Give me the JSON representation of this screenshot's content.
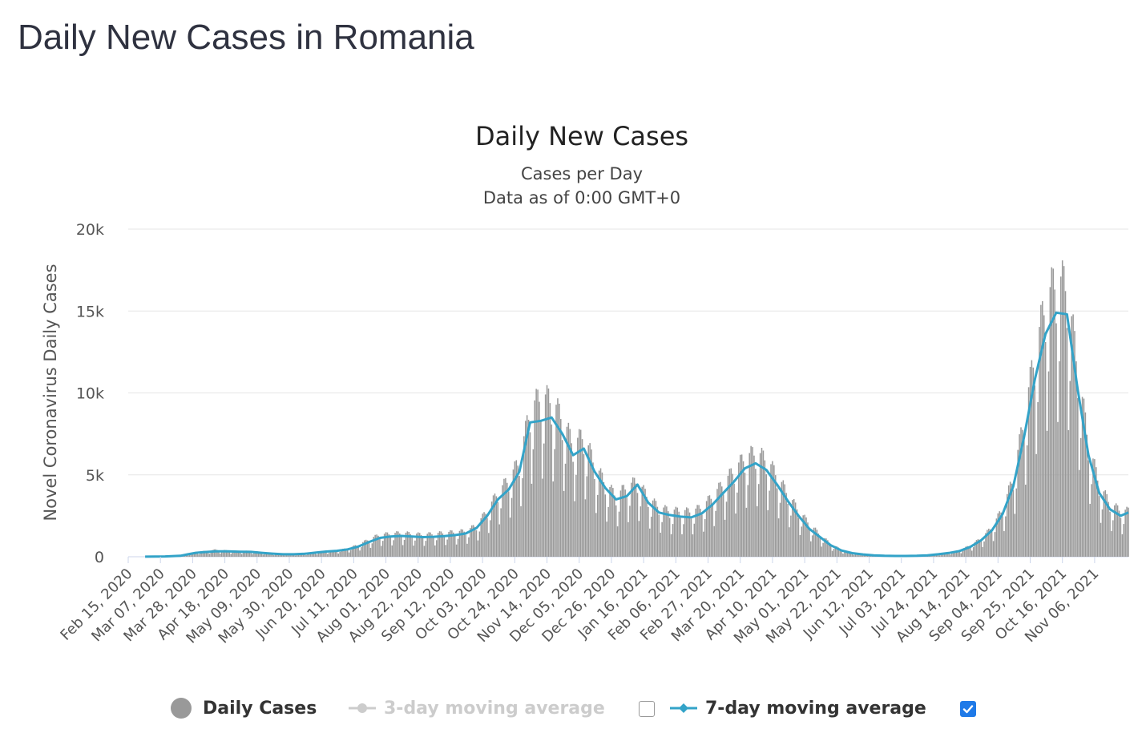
{
  "page": {
    "title": "Daily New Cases in Romania"
  },
  "chart_data": {
    "type": "bar",
    "title": "Daily New Cases",
    "subtitle_lines": [
      "Cases per Day",
      "Data as of 0:00 GMT+0"
    ],
    "xlabel": "",
    "ylabel": "Novel Coronavirus Daily Cases",
    "ylim": [
      0,
      20000
    ],
    "y_ticks": [
      0,
      5000,
      10000,
      15000,
      20000
    ],
    "y_tick_labels": [
      "0",
      "5k",
      "10k",
      "15k",
      "20k"
    ],
    "x_start_date": "2020-02-15",
    "x_end_date": "2021-11-28",
    "x_tick_labels": [
      "Feb 15, 2020",
      "Mar 07, 2020",
      "Mar 28, 2020",
      "Apr 18, 2020",
      "May 09, 2020",
      "May 30, 2020",
      "Jun 20, 2020",
      "Jul 11, 2020",
      "Aug 01, 2020",
      "Aug 22, 2020",
      "Sep 12, 2020",
      "Oct 03, 2020",
      "Oct 24, 2020",
      "Nov 14, 2020",
      "Dec 05, 2020",
      "Dec 26, 2020",
      "Jan 16, 2021",
      "Feb 06, 2021",
      "Feb 27, 2021",
      "Mar 20, 2021",
      "Apr 10, 2021",
      "May 01, 2021",
      "May 22, 2021",
      "Jun 12, 2021",
      "Jul 03, 2021",
      "Jul 24, 2021",
      "Aug 14, 2021",
      "Sep 04, 2021",
      "Sep 25, 2021",
      "Oct 16, 2021",
      "Nov 06, 2021"
    ],
    "grid": true,
    "legend_position": "bottom",
    "series": [
      {
        "name": "Daily Cases",
        "type": "bar",
        "color": "#999999",
        "visible": true,
        "points": [
          [
            "2020-02-26",
            1
          ],
          [
            "2020-03-10",
            15
          ],
          [
            "2020-03-20",
            50
          ],
          [
            "2020-03-25",
            150
          ],
          [
            "2020-03-30",
            250
          ],
          [
            "2020-04-05",
            300
          ],
          [
            "2020-04-12",
            380
          ],
          [
            "2020-04-20",
            330
          ],
          [
            "2020-04-28",
            300
          ],
          [
            "2020-05-05",
            310
          ],
          [
            "2020-05-12",
            250
          ],
          [
            "2020-05-19",
            180
          ],
          [
            "2020-05-26",
            150
          ],
          [
            "2020-06-02",
            130
          ],
          [
            "2020-06-09",
            170
          ],
          [
            "2020-06-16",
            250
          ],
          [
            "2020-06-23",
            320
          ],
          [
            "2020-06-30",
            340
          ],
          [
            "2020-07-07",
            450
          ],
          [
            "2020-07-14",
            650
          ],
          [
            "2020-07-21",
            950
          ],
          [
            "2020-07-28",
            1200
          ],
          [
            "2020-08-04",
            1250
          ],
          [
            "2020-08-11",
            1300
          ],
          [
            "2020-08-18",
            1250
          ],
          [
            "2020-08-25",
            1200
          ],
          [
            "2020-09-01",
            1250
          ],
          [
            "2020-09-08",
            1300
          ],
          [
            "2020-09-15",
            1350
          ],
          [
            "2020-09-22",
            1400
          ],
          [
            "2020-09-29",
            1700
          ],
          [
            "2020-10-06",
            2500
          ],
          [
            "2020-10-13",
            3500
          ],
          [
            "2020-10-20",
            4200
          ],
          [
            "2020-10-27",
            5200
          ],
          [
            "2020-11-03",
            8000
          ],
          [
            "2020-11-10",
            8700
          ],
          [
            "2020-11-17",
            8500
          ],
          [
            "2020-11-24",
            7500
          ],
          [
            "2020-12-01",
            6100
          ],
          [
            "2020-12-08",
            6600
          ],
          [
            "2020-12-15",
            5000
          ],
          [
            "2020-12-22",
            4000
          ],
          [
            "2020-12-29",
            3300
          ],
          [
            "2021-01-05",
            3800
          ],
          [
            "2021-01-12",
            4100
          ],
          [
            "2021-01-19",
            3200
          ],
          [
            "2021-01-26",
            2700
          ],
          [
            "2021-02-02",
            2500
          ],
          [
            "2021-02-09",
            2500
          ],
          [
            "2021-02-16",
            2450
          ],
          [
            "2021-02-23",
            2700
          ],
          [
            "2021-03-02",
            3300
          ],
          [
            "2021-03-09",
            4000
          ],
          [
            "2021-03-16",
            4700
          ],
          [
            "2021-03-23",
            5400
          ],
          [
            "2021-03-30",
            5650
          ],
          [
            "2021-04-06",
            5300
          ],
          [
            "2021-04-13",
            4400
          ],
          [
            "2021-04-20",
            3400
          ],
          [
            "2021-04-27",
            2500
          ],
          [
            "2021-05-04",
            1800
          ],
          [
            "2021-05-11",
            1200
          ],
          [
            "2021-05-18",
            700
          ],
          [
            "2021-05-25",
            380
          ],
          [
            "2021-06-01",
            220
          ],
          [
            "2021-06-08",
            140
          ],
          [
            "2021-06-15",
            90
          ],
          [
            "2021-06-22",
            60
          ],
          [
            "2021-06-29",
            50
          ],
          [
            "2021-07-06",
            50
          ],
          [
            "2021-07-13",
            60
          ],
          [
            "2021-07-20",
            90
          ],
          [
            "2021-07-27",
            150
          ],
          [
            "2021-08-03",
            230
          ],
          [
            "2021-08-10",
            350
          ],
          [
            "2021-08-17",
            620
          ],
          [
            "2021-08-24",
            1000
          ],
          [
            "2021-08-31",
            1600
          ],
          [
            "2021-09-07",
            2600
          ],
          [
            "2021-09-14",
            4300
          ],
          [
            "2021-09-21",
            7500
          ],
          [
            "2021-09-28",
            11000
          ],
          [
            "2021-10-05",
            13800
          ],
          [
            "2021-10-12",
            15000
          ],
          [
            "2021-10-19",
            14700
          ],
          [
            "2021-10-26",
            10200
          ],
          [
            "2021-11-02",
            6200
          ],
          [
            "2021-11-09",
            3900
          ],
          [
            "2021-11-16",
            2900
          ],
          [
            "2021-11-23",
            2500
          ]
        ]
      },
      {
        "name": "3-day moving average",
        "type": "line",
        "color": "#cccccc",
        "visible": false,
        "checked": false
      },
      {
        "name": "7-day moving average",
        "type": "line",
        "color": "#33a3c8",
        "visible": true,
        "checked": true,
        "points": [
          [
            "2020-02-26",
            5
          ],
          [
            "2020-03-10",
            20
          ],
          [
            "2020-03-20",
            60
          ],
          [
            "2020-03-25",
            150
          ],
          [
            "2020-03-30",
            240
          ],
          [
            "2020-04-05",
            290
          ],
          [
            "2020-04-12",
            330
          ],
          [
            "2020-04-20",
            330
          ],
          [
            "2020-04-28",
            310
          ],
          [
            "2020-05-05",
            300
          ],
          [
            "2020-05-12",
            240
          ],
          [
            "2020-05-19",
            190
          ],
          [
            "2020-05-26",
            150
          ],
          [
            "2020-06-02",
            150
          ],
          [
            "2020-06-09",
            180
          ],
          [
            "2020-06-16",
            250
          ],
          [
            "2020-06-23",
            320
          ],
          [
            "2020-06-30",
            360
          ],
          [
            "2020-07-07",
            450
          ],
          [
            "2020-07-14",
            620
          ],
          [
            "2020-07-21",
            900
          ],
          [
            "2020-07-28",
            1150
          ],
          [
            "2020-08-04",
            1230
          ],
          [
            "2020-08-11",
            1270
          ],
          [
            "2020-08-18",
            1230
          ],
          [
            "2020-08-25",
            1200
          ],
          [
            "2020-09-01",
            1220
          ],
          [
            "2020-09-08",
            1260
          ],
          [
            "2020-09-15",
            1320
          ],
          [
            "2020-09-22",
            1420
          ],
          [
            "2020-09-29",
            1750
          ],
          [
            "2020-10-06",
            2500
          ],
          [
            "2020-10-13",
            3500
          ],
          [
            "2020-10-20",
            4100
          ],
          [
            "2020-10-27",
            5200
          ],
          [
            "2020-11-03",
            8200
          ],
          [
            "2020-11-10",
            8300
          ],
          [
            "2020-11-17",
            8500
          ],
          [
            "2020-11-24",
            7500
          ],
          [
            "2020-12-01",
            6200
          ],
          [
            "2020-12-08",
            6600
          ],
          [
            "2020-12-15",
            5200
          ],
          [
            "2020-12-22",
            4200
          ],
          [
            "2020-12-29",
            3500
          ],
          [
            "2021-01-05",
            3700
          ],
          [
            "2021-01-12",
            4400
          ],
          [
            "2021-01-19",
            3300
          ],
          [
            "2021-01-26",
            2700
          ],
          [
            "2021-02-02",
            2550
          ],
          [
            "2021-02-09",
            2450
          ],
          [
            "2021-02-16",
            2400
          ],
          [
            "2021-02-23",
            2650
          ],
          [
            "2021-03-02",
            3200
          ],
          [
            "2021-03-09",
            3900
          ],
          [
            "2021-03-16",
            4600
          ],
          [
            "2021-03-23",
            5400
          ],
          [
            "2021-03-30",
            5700
          ],
          [
            "2021-04-06",
            5300
          ],
          [
            "2021-04-13",
            4400
          ],
          [
            "2021-04-20",
            3400
          ],
          [
            "2021-04-27",
            2500
          ],
          [
            "2021-05-04",
            1700
          ],
          [
            "2021-05-11",
            1200
          ],
          [
            "2021-05-18",
            700
          ],
          [
            "2021-05-25",
            380
          ],
          [
            "2021-06-01",
            220
          ],
          [
            "2021-06-08",
            140
          ],
          [
            "2021-06-15",
            90
          ],
          [
            "2021-06-22",
            60
          ],
          [
            "2021-06-29",
            50
          ],
          [
            "2021-07-06",
            50
          ],
          [
            "2021-07-13",
            60
          ],
          [
            "2021-07-20",
            90
          ],
          [
            "2021-07-27",
            150
          ],
          [
            "2021-08-03",
            230
          ],
          [
            "2021-08-10",
            350
          ],
          [
            "2021-08-17",
            600
          ],
          [
            "2021-08-24",
            1000
          ],
          [
            "2021-08-31",
            1600
          ],
          [
            "2021-09-07",
            2600
          ],
          [
            "2021-09-14",
            4300
          ],
          [
            "2021-09-21",
            7300
          ],
          [
            "2021-09-28",
            10800
          ],
          [
            "2021-10-05",
            13600
          ],
          [
            "2021-10-12",
            14900
          ],
          [
            "2021-10-19",
            14800
          ],
          [
            "2021-10-26",
            10200
          ],
          [
            "2021-11-02",
            6200
          ],
          [
            "2021-11-09",
            3900
          ],
          [
            "2021-11-16",
            2900
          ],
          [
            "2021-11-23",
            2500
          ],
          [
            "2021-11-28",
            2700
          ]
        ]
      }
    ]
  }
}
